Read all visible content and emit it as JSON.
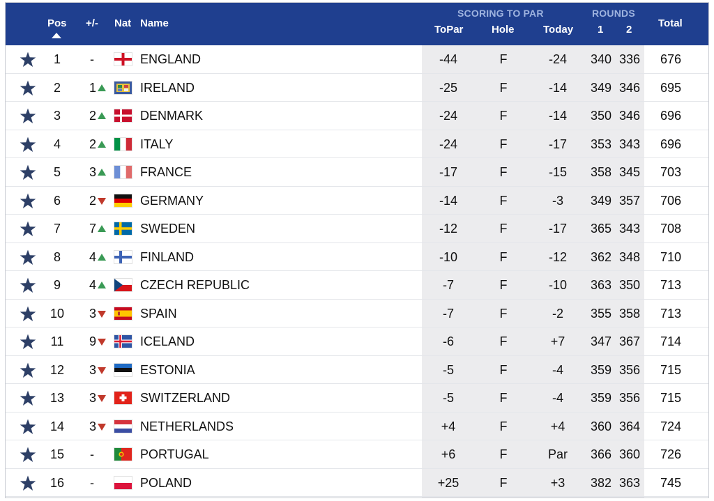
{
  "header": {
    "pos": "Pos",
    "move": "+/-",
    "nat": "Nat",
    "name": "Name",
    "group_scoring": "SCORING TO PAR",
    "group_rounds": "ROUNDS",
    "topar": "ToPar",
    "hole": "Hole",
    "today": "Today",
    "r1": "1",
    "r2": "2",
    "total": "Total"
  },
  "colors": {
    "header_bg": "#1f3f8f",
    "star": "#2d3f66",
    "up": "#3a9a55",
    "down": "#c0392b"
  },
  "rows": [
    {
      "pos": "1",
      "move": "-",
      "dir": "none",
      "flag": "england",
      "name": "ENGLAND",
      "topar": "-44",
      "hole": "F",
      "today": "-24",
      "r1": "340",
      "r2": "336",
      "total": "676"
    },
    {
      "pos": "2",
      "move": "1",
      "dir": "up",
      "flag": "ireland",
      "name": "IRELAND",
      "topar": "-25",
      "hole": "F",
      "today": "-14",
      "r1": "349",
      "r2": "346",
      "total": "695"
    },
    {
      "pos": "3",
      "move": "2",
      "dir": "up",
      "flag": "denmark",
      "name": "DENMARK",
      "topar": "-24",
      "hole": "F",
      "today": "-14",
      "r1": "350",
      "r2": "346",
      "total": "696"
    },
    {
      "pos": "4",
      "move": "2",
      "dir": "up",
      "flag": "italy",
      "name": "ITALY",
      "topar": "-24",
      "hole": "F",
      "today": "-17",
      "r1": "353",
      "r2": "343",
      "total": "696"
    },
    {
      "pos": "5",
      "move": "3",
      "dir": "up",
      "flag": "france",
      "name": "FRANCE",
      "topar": "-17",
      "hole": "F",
      "today": "-15",
      "r1": "358",
      "r2": "345",
      "total": "703"
    },
    {
      "pos": "6",
      "move": "2",
      "dir": "down",
      "flag": "germany",
      "name": "GERMANY",
      "topar": "-14",
      "hole": "F",
      "today": "-3",
      "r1": "349",
      "r2": "357",
      "total": "706"
    },
    {
      "pos": "7",
      "move": "7",
      "dir": "up",
      "flag": "sweden",
      "name": "SWEDEN",
      "topar": "-12",
      "hole": "F",
      "today": "-17",
      "r1": "365",
      "r2": "343",
      "total": "708"
    },
    {
      "pos": "8",
      "move": "4",
      "dir": "up",
      "flag": "finland",
      "name": "FINLAND",
      "topar": "-10",
      "hole": "F",
      "today": "-12",
      "r1": "362",
      "r2": "348",
      "total": "710"
    },
    {
      "pos": "9",
      "move": "4",
      "dir": "up",
      "flag": "czech",
      "name": "CZECH REPUBLIC",
      "topar": "-7",
      "hole": "F",
      "today": "-10",
      "r1": "363",
      "r2": "350",
      "total": "713"
    },
    {
      "pos": "10",
      "move": "3",
      "dir": "down",
      "flag": "spain",
      "name": "SPAIN",
      "topar": "-7",
      "hole": "F",
      "today": "-2",
      "r1": "355",
      "r2": "358",
      "total": "713"
    },
    {
      "pos": "11",
      "move": "9",
      "dir": "down",
      "flag": "iceland",
      "name": "ICELAND",
      "topar": "-6",
      "hole": "F",
      "today": "+7",
      "r1": "347",
      "r2": "367",
      "total": "714"
    },
    {
      "pos": "12",
      "move": "3",
      "dir": "down",
      "flag": "estonia",
      "name": "ESTONIA",
      "topar": "-5",
      "hole": "F",
      "today": "-4",
      "r1": "359",
      "r2": "356",
      "total": "715"
    },
    {
      "pos": "13",
      "move": "3",
      "dir": "down",
      "flag": "switzerland",
      "name": "SWITZERLAND",
      "topar": "-5",
      "hole": "F",
      "today": "-4",
      "r1": "359",
      "r2": "356",
      "total": "715"
    },
    {
      "pos": "14",
      "move": "3",
      "dir": "down",
      "flag": "netherlands",
      "name": "NETHERLANDS",
      "topar": "+4",
      "hole": "F",
      "today": "+4",
      "r1": "360",
      "r2": "364",
      "total": "724"
    },
    {
      "pos": "15",
      "move": "-",
      "dir": "none",
      "flag": "portugal",
      "name": "PORTUGAL",
      "topar": "+6",
      "hole": "F",
      "today": "Par",
      "r1": "366",
      "r2": "360",
      "total": "726"
    },
    {
      "pos": "16",
      "move": "-",
      "dir": "none",
      "flag": "poland",
      "name": "POLAND",
      "topar": "+25",
      "hole": "F",
      "today": "+3",
      "r1": "382",
      "r2": "363",
      "total": "745"
    }
  ]
}
